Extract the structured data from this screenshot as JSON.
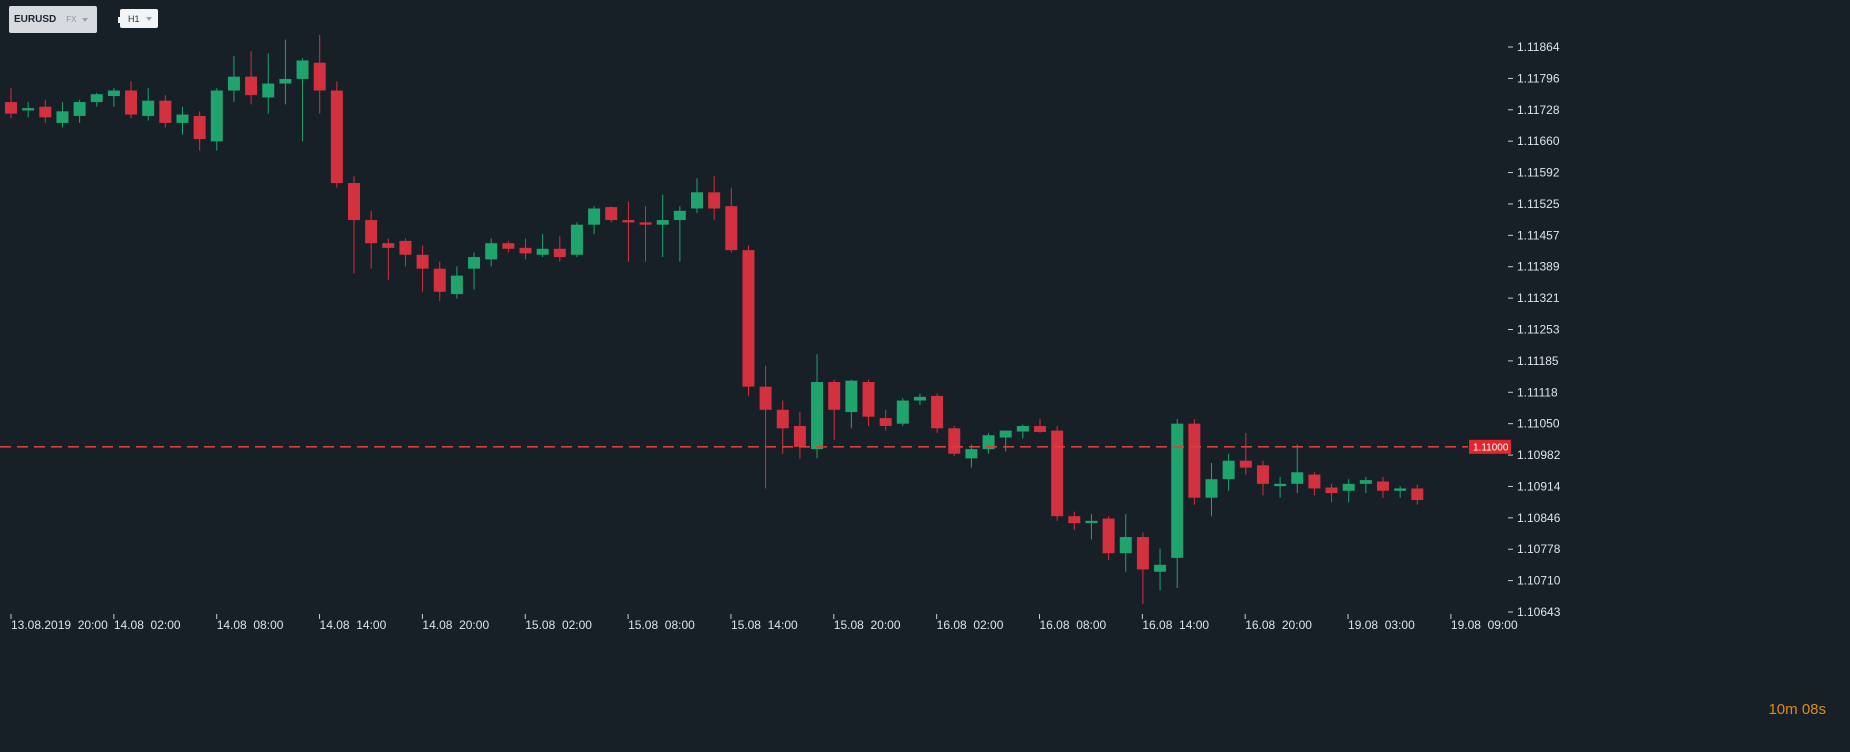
{
  "toolbar": {
    "symbol": "EURUSD",
    "symbol_type": "FX",
    "timeframe": "H1"
  },
  "countdown": {
    "minutes": "10",
    "minutes_unit": "m",
    "seconds": "08",
    "seconds_unit": "s"
  },
  "colors": {
    "background": "#171f27",
    "up": "#1fa46d",
    "down": "#d3313f",
    "text": "#dfe3e8",
    "price_line": "#e03a3a"
  },
  "chart_data": {
    "type": "candlestick",
    "title": "",
    "symbol": "EURUSD",
    "timeframe": "H1",
    "ylim": [
      1.10643,
      1.11932
    ],
    "y_ticks": [
      "1.11864",
      "1.11796",
      "1.11728",
      "1.11660",
      "1.11592",
      "1.11525",
      "1.11457",
      "1.11389",
      "1.11321",
      "1.11253",
      "1.11185",
      "1.11118",
      "1.11050",
      "1.10982",
      "1.10914",
      "1.10846",
      "1.10778",
      "1.10710",
      "1.10643"
    ],
    "x_ticks": [
      "13.08.2019  20:00",
      "14.08  02:00",
      "14.08  08:00",
      "14.08  14:00",
      "14.08  20:00",
      "15.08  02:00",
      "15.08  08:00",
      "15.08  14:00",
      "15.08  20:00",
      "16.08  02:00",
      "16.08  08:00",
      "16.08  14:00",
      "16.08  20:00",
      "19.08  03:00",
      "19.08  09:00"
    ],
    "current_price": "1.11000",
    "current_price_value": 1.11,
    "candles": [
      {
        "o": 1.11745,
        "h": 1.11775,
        "l": 1.1171,
        "c": 1.1172
      },
      {
        "o": 1.11727,
        "h": 1.11745,
        "l": 1.11712,
        "c": 1.11732
      },
      {
        "o": 1.11735,
        "h": 1.1175,
        "l": 1.117,
        "c": 1.11712
      },
      {
        "o": 1.117,
        "h": 1.11745,
        "l": 1.1169,
        "c": 1.11725
      },
      {
        "o": 1.11715,
        "h": 1.1175,
        "l": 1.117,
        "c": 1.11745
      },
      {
        "o": 1.11745,
        "h": 1.11765,
        "l": 1.11735,
        "c": 1.11762
      },
      {
        "o": 1.11758,
        "h": 1.11775,
        "l": 1.11735,
        "c": 1.1177
      },
      {
        "o": 1.1177,
        "h": 1.1179,
        "l": 1.1171,
        "c": 1.11718
      },
      {
        "o": 1.11715,
        "h": 1.11775,
        "l": 1.11705,
        "c": 1.11748
      },
      {
        "o": 1.11748,
        "h": 1.1176,
        "l": 1.1169,
        "c": 1.117
      },
      {
        "o": 1.117,
        "h": 1.11735,
        "l": 1.11675,
        "c": 1.11718
      },
      {
        "o": 1.11715,
        "h": 1.11725,
        "l": 1.1164,
        "c": 1.11665
      },
      {
        "o": 1.1166,
        "h": 1.11775,
        "l": 1.1164,
        "c": 1.1177
      },
      {
        "o": 1.1177,
        "h": 1.11845,
        "l": 1.11745,
        "c": 1.118
      },
      {
        "o": 1.118,
        "h": 1.11855,
        "l": 1.1174,
        "c": 1.1176
      },
      {
        "o": 1.11755,
        "h": 1.1185,
        "l": 1.1172,
        "c": 1.11785
      },
      {
        "o": 1.11785,
        "h": 1.1188,
        "l": 1.1174,
        "c": 1.11795
      },
      {
        "o": 1.11795,
        "h": 1.1184,
        "l": 1.1166,
        "c": 1.11835
      },
      {
        "o": 1.1183,
        "h": 1.1189,
        "l": 1.1172,
        "c": 1.1177
      },
      {
        "o": 1.1177,
        "h": 1.1179,
        "l": 1.1156,
        "c": 1.1157
      },
      {
        "o": 1.1157,
        "h": 1.11585,
        "l": 1.11375,
        "c": 1.1149
      },
      {
        "o": 1.1149,
        "h": 1.1151,
        "l": 1.11385,
        "c": 1.1144
      },
      {
        "o": 1.1144,
        "h": 1.1145,
        "l": 1.1136,
        "c": 1.1143
      },
      {
        "o": 1.11445,
        "h": 1.1145,
        "l": 1.1139,
        "c": 1.11415
      },
      {
        "o": 1.11415,
        "h": 1.11435,
        "l": 1.11335,
        "c": 1.11385
      },
      {
        "o": 1.11385,
        "h": 1.114,
        "l": 1.11315,
        "c": 1.11335
      },
      {
        "o": 1.1133,
        "h": 1.1139,
        "l": 1.1132,
        "c": 1.1137
      },
      {
        "o": 1.11385,
        "h": 1.1142,
        "l": 1.1134,
        "c": 1.1141
      },
      {
        "o": 1.11405,
        "h": 1.1145,
        "l": 1.1139,
        "c": 1.1144
      },
      {
        "o": 1.1144,
        "h": 1.11445,
        "l": 1.1142,
        "c": 1.11428
      },
      {
        "o": 1.1143,
        "h": 1.1145,
        "l": 1.11405,
        "c": 1.11418
      },
      {
        "o": 1.11415,
        "h": 1.1146,
        "l": 1.1141,
        "c": 1.11428
      },
      {
        "o": 1.11428,
        "h": 1.11455,
        "l": 1.114,
        "c": 1.1141
      },
      {
        "o": 1.11415,
        "h": 1.11485,
        "l": 1.1141,
        "c": 1.1148
      },
      {
        "o": 1.1148,
        "h": 1.1152,
        "l": 1.1146,
        "c": 1.11515
      },
      {
        "o": 1.11518,
        "h": 1.1152,
        "l": 1.11485,
        "c": 1.1149
      },
      {
        "o": 1.1149,
        "h": 1.1153,
        "l": 1.114,
        "c": 1.11485
      },
      {
        "o": 1.11485,
        "h": 1.1152,
        "l": 1.114,
        "c": 1.1148
      },
      {
        "o": 1.1148,
        "h": 1.11545,
        "l": 1.1141,
        "c": 1.1149
      },
      {
        "o": 1.1149,
        "h": 1.1152,
        "l": 1.114,
        "c": 1.1151
      },
      {
        "o": 1.11515,
        "h": 1.1158,
        "l": 1.11505,
        "c": 1.1155
      },
      {
        "o": 1.1155,
        "h": 1.11585,
        "l": 1.1149,
        "c": 1.11515
      },
      {
        "o": 1.1152,
        "h": 1.1156,
        "l": 1.1142,
        "c": 1.11425
      },
      {
        "o": 1.11425,
        "h": 1.11435,
        "l": 1.1111,
        "c": 1.1113
      },
      {
        "o": 1.1113,
        "h": 1.11175,
        "l": 1.1091,
        "c": 1.1108
      },
      {
        "o": 1.1108,
        "h": 1.111,
        "l": 1.10985,
        "c": 1.1104
      },
      {
        "o": 1.11045,
        "h": 1.11075,
        "l": 1.10975,
        "c": 1.11
      },
      {
        "o": 1.10995,
        "h": 1.112,
        "l": 1.10975,
        "c": 1.1114
      },
      {
        "o": 1.1114,
        "h": 1.11145,
        "l": 1.11015,
        "c": 1.1108
      },
      {
        "o": 1.11075,
        "h": 1.11145,
        "l": 1.1104,
        "c": 1.11143
      },
      {
        "o": 1.1114,
        "h": 1.11145,
        "l": 1.11045,
        "c": 1.11065
      },
      {
        "o": 1.11062,
        "h": 1.1108,
        "l": 1.11035,
        "c": 1.11045
      },
      {
        "o": 1.1105,
        "h": 1.11105,
        "l": 1.11045,
        "c": 1.111
      },
      {
        "o": 1.111,
        "h": 1.11115,
        "l": 1.1109,
        "c": 1.11108
      },
      {
        "o": 1.1111,
        "h": 1.11115,
        "l": 1.1103,
        "c": 1.1104
      },
      {
        "o": 1.1104,
        "h": 1.11045,
        "l": 1.1098,
        "c": 1.10985
      },
      {
        "o": 1.10975,
        "h": 1.11005,
        "l": 1.10955,
        "c": 1.10995
      },
      {
        "o": 1.10995,
        "h": 1.1103,
        "l": 1.10985,
        "c": 1.11025
      },
      {
        "o": 1.1102,
        "h": 1.11035,
        "l": 1.1099,
        "c": 1.11035
      },
      {
        "o": 1.11033,
        "h": 1.11048,
        "l": 1.11018,
        "c": 1.11045
      },
      {
        "o": 1.11045,
        "h": 1.1106,
        "l": 1.1103,
        "c": 1.11032
      },
      {
        "o": 1.11035,
        "h": 1.11045,
        "l": 1.1084,
        "c": 1.1085
      },
      {
        "o": 1.1085,
        "h": 1.1086,
        "l": 1.1082,
        "c": 1.10835
      },
      {
        "o": 1.10835,
        "h": 1.10855,
        "l": 1.108,
        "c": 1.1084
      },
      {
        "o": 1.10845,
        "h": 1.1085,
        "l": 1.10755,
        "c": 1.1077
      },
      {
        "o": 1.1077,
        "h": 1.10855,
        "l": 1.1073,
        "c": 1.10805
      },
      {
        "o": 1.10805,
        "h": 1.10815,
        "l": 1.1066,
        "c": 1.10735
      },
      {
        "o": 1.1073,
        "h": 1.1078,
        "l": 1.1069,
        "c": 1.10745
      },
      {
        "o": 1.1076,
        "h": 1.1106,
        "l": 1.10695,
        "c": 1.1105
      },
      {
        "o": 1.1105,
        "h": 1.1106,
        "l": 1.10875,
        "c": 1.1089
      },
      {
        "o": 1.1089,
        "h": 1.10965,
        "l": 1.1085,
        "c": 1.1093
      },
      {
        "o": 1.1093,
        "h": 1.10985,
        "l": 1.10905,
        "c": 1.1097
      },
      {
        "o": 1.1097,
        "h": 1.1103,
        "l": 1.1094,
        "c": 1.10955
      },
      {
        "o": 1.1096,
        "h": 1.1097,
        "l": 1.10895,
        "c": 1.1092
      },
      {
        "o": 1.10915,
        "h": 1.10935,
        "l": 1.1089,
        "c": 1.1092
      },
      {
        "o": 1.1092,
        "h": 1.11005,
        "l": 1.109,
        "c": 1.10945
      },
      {
        "o": 1.1094,
        "h": 1.10945,
        "l": 1.10895,
        "c": 1.1091
      },
      {
        "o": 1.10912,
        "h": 1.1092,
        "l": 1.1088,
        "c": 1.109
      },
      {
        "o": 1.10905,
        "h": 1.1093,
        "l": 1.1088,
        "c": 1.1092
      },
      {
        "o": 1.1092,
        "h": 1.10935,
        "l": 1.109,
        "c": 1.10928
      },
      {
        "o": 1.10925,
        "h": 1.10935,
        "l": 1.1089,
        "c": 1.10905
      },
      {
        "o": 1.10905,
        "h": 1.10915,
        "l": 1.1089,
        "c": 1.1091
      },
      {
        "o": 1.1091,
        "h": 1.10918,
        "l": 1.10875,
        "c": 1.10885
      }
    ]
  }
}
